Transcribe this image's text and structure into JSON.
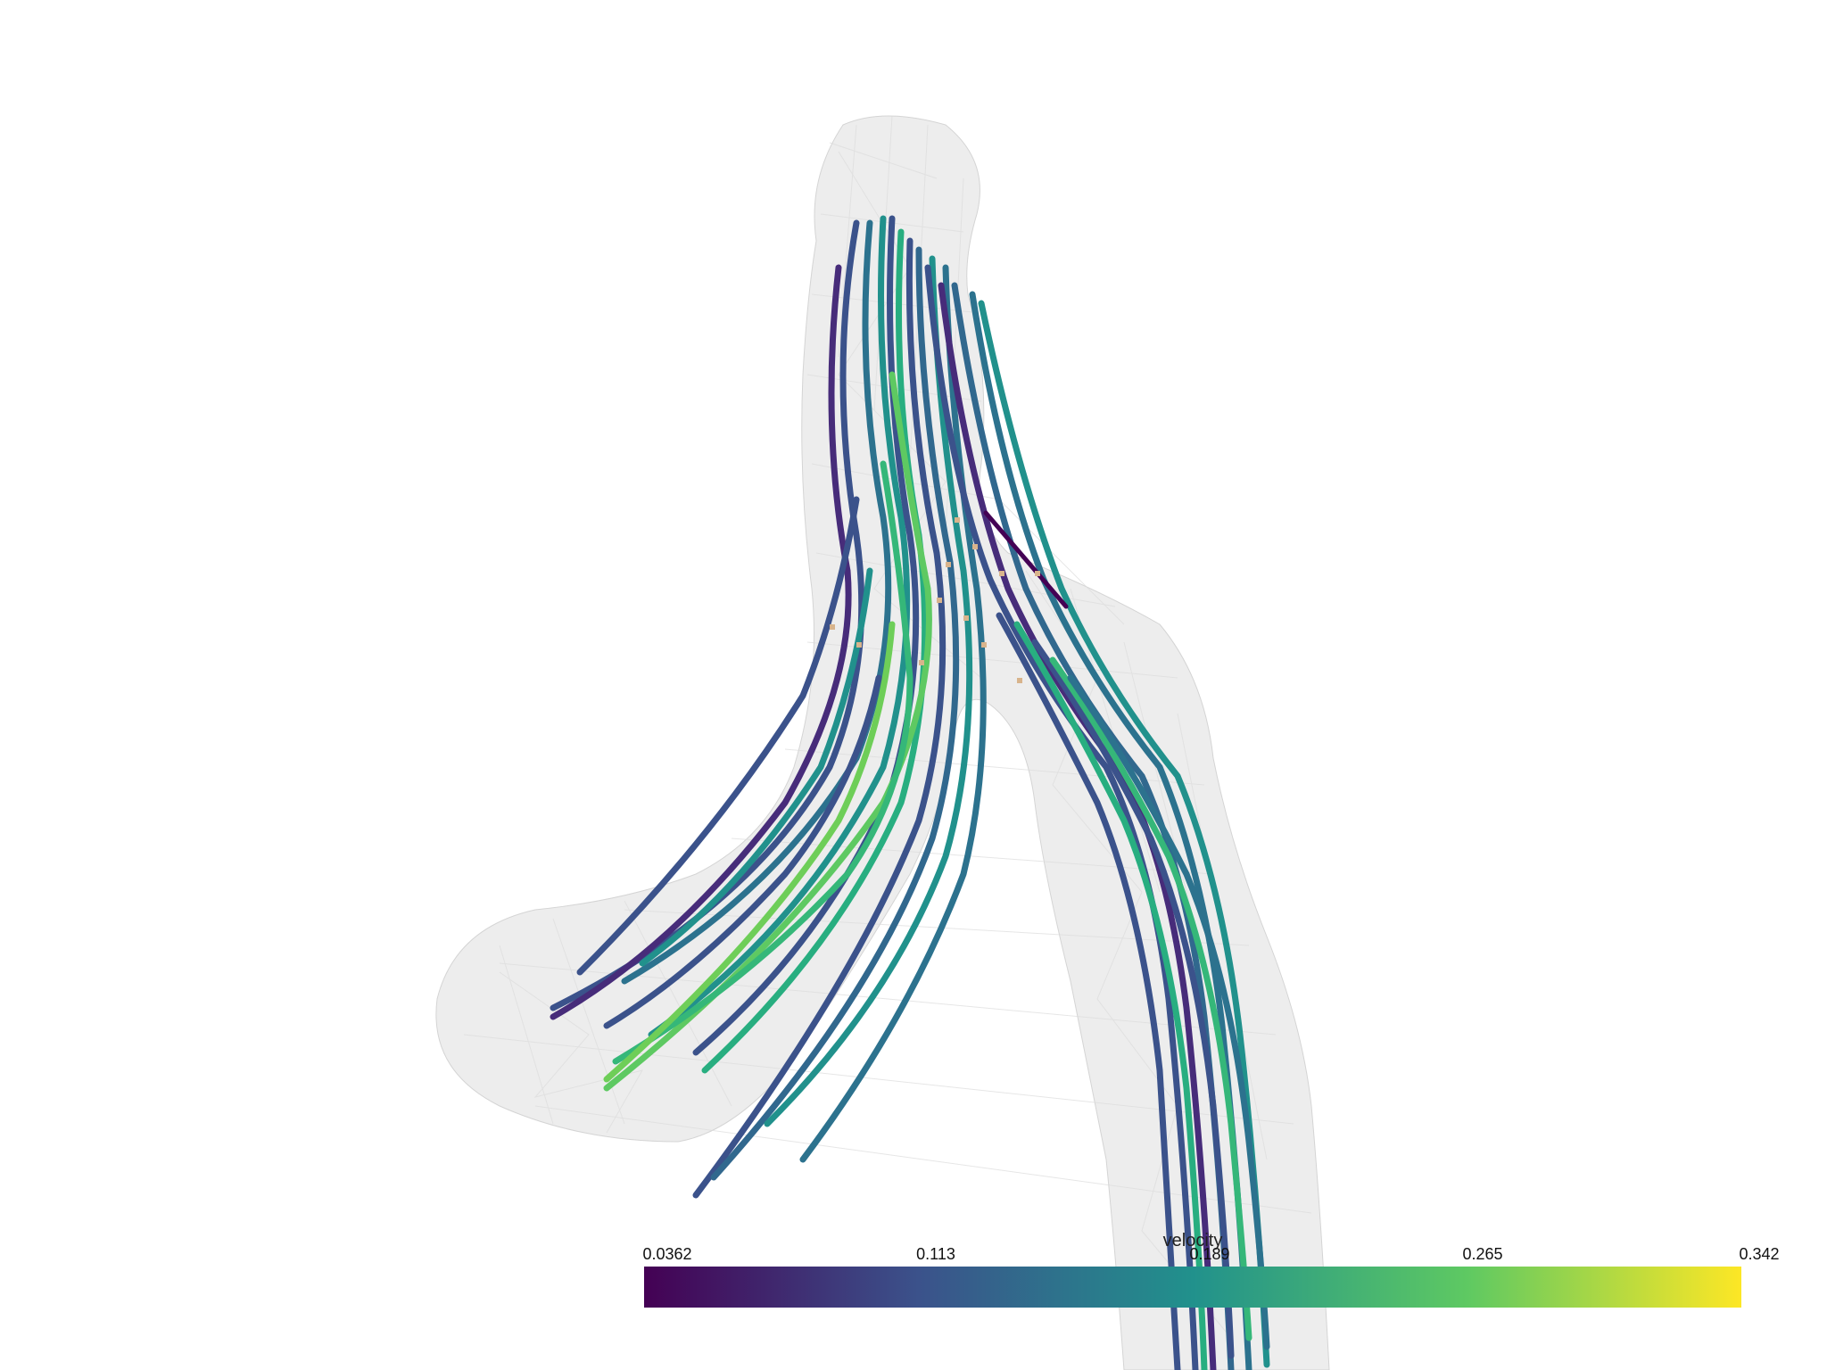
{
  "scalar_bar": {
    "title": "velocity",
    "colors": [
      "#440154",
      "#3b528b",
      "#21918c",
      "#5ec962",
      "#fde725"
    ],
    "ticks": [
      "0.0362",
      "0.113",
      "0.189",
      "0.265",
      "0.342"
    ],
    "orientation": "horizontal",
    "position": "bottom"
  },
  "scene": {
    "mesh_color": "#d6d6d6",
    "background": "#ffffff",
    "glyph_color": "#d8b48c"
  }
}
